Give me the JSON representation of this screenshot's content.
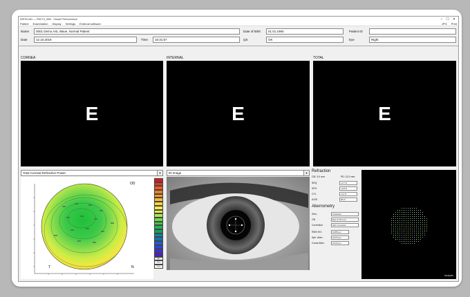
{
  "window": {
    "title": "IDESCAN — R0074_088 · Visual Performance",
    "controls": {
      "min": "–",
      "max": "☐",
      "close": "✕"
    }
  },
  "menu": {
    "items": [
      "Patient",
      "Examination",
      "Display",
      "Settings",
      "External software"
    ],
    "right": [
      "JPG",
      "Print"
    ]
  },
  "patient": {
    "name_label": "Name",
    "name_value": "0001 Demo AXL Wave, Normal Patient",
    "dob_label": "Date of Birth",
    "dob_value": "01.01.1960",
    "pid_label": "Patient ID",
    "pid_value": "",
    "date_label": "Date",
    "date_value": "12.10.2019",
    "time_label": "Time",
    "time_value": "16:31:57",
    "qs_label": "QS",
    "qs_value": "OK",
    "eye_label": "Eye",
    "eye_value": "Right"
  },
  "panels": {
    "cornea_title": "CORNEA",
    "internal_title": "INTERNAL",
    "total_title": "TOTAL",
    "optotype": "E"
  },
  "map": {
    "selector": "Total Corneal Refractive Power",
    "eye": "OD",
    "temporal": "T",
    "nasal": "N",
    "legend_colors": [
      "#d81b1b",
      "#e83a1c",
      "#ef5a20",
      "#f27b25",
      "#f59a2b",
      "#f7b733",
      "#f8d43c",
      "#f6ea45",
      "#d9ef4d",
      "#a8e84f",
      "#6fd94e",
      "#3fc74b",
      "#20b44f",
      "#12a068",
      "#0f8b8e",
      "#1473b6",
      "#1e5ed6",
      "#2a45e6",
      "#3a2fe0",
      "#4a20c8"
    ],
    "legend_footer": [
      "Abs",
      "Norm",
      "Zoom"
    ]
  },
  "ir": {
    "selector": "IR Image"
  },
  "refraction": {
    "title": "Refraction",
    "header_left": "OD: 3.0 mm",
    "header_right": "PD: 22.0 mm",
    "rows": [
      {
        "k": "SEQ",
        "v": "+0.7 D"
      },
      {
        "k": "SPH",
        "v": "+0.8 D"
      },
      {
        "k": "CYL",
        "v": "-0.2 D"
      },
      {
        "k": "AXIS",
        "v": "95.0°"
      }
    ]
  },
  "aberrometry": {
    "title": "Aberrometry",
    "rows": [
      {
        "k": "Zern.",
        "v": "Character"
      },
      {
        "k": "OD",
        "v": "Exp (3.70 mm)"
      },
      {
        "k": "Correction",
        "v": "Sph Corrected"
      }
    ],
    "values": [
      {
        "k": "RMS HO:",
        "v": "0.085 µm"
      },
      {
        "k": "Sph. Aber.:",
        "v": "0.073 µm"
      },
      {
        "k": "Coma Aber.:",
        "v": "0.015 µm"
      }
    ]
  },
  "spot": {
    "label": "Analysis"
  }
}
